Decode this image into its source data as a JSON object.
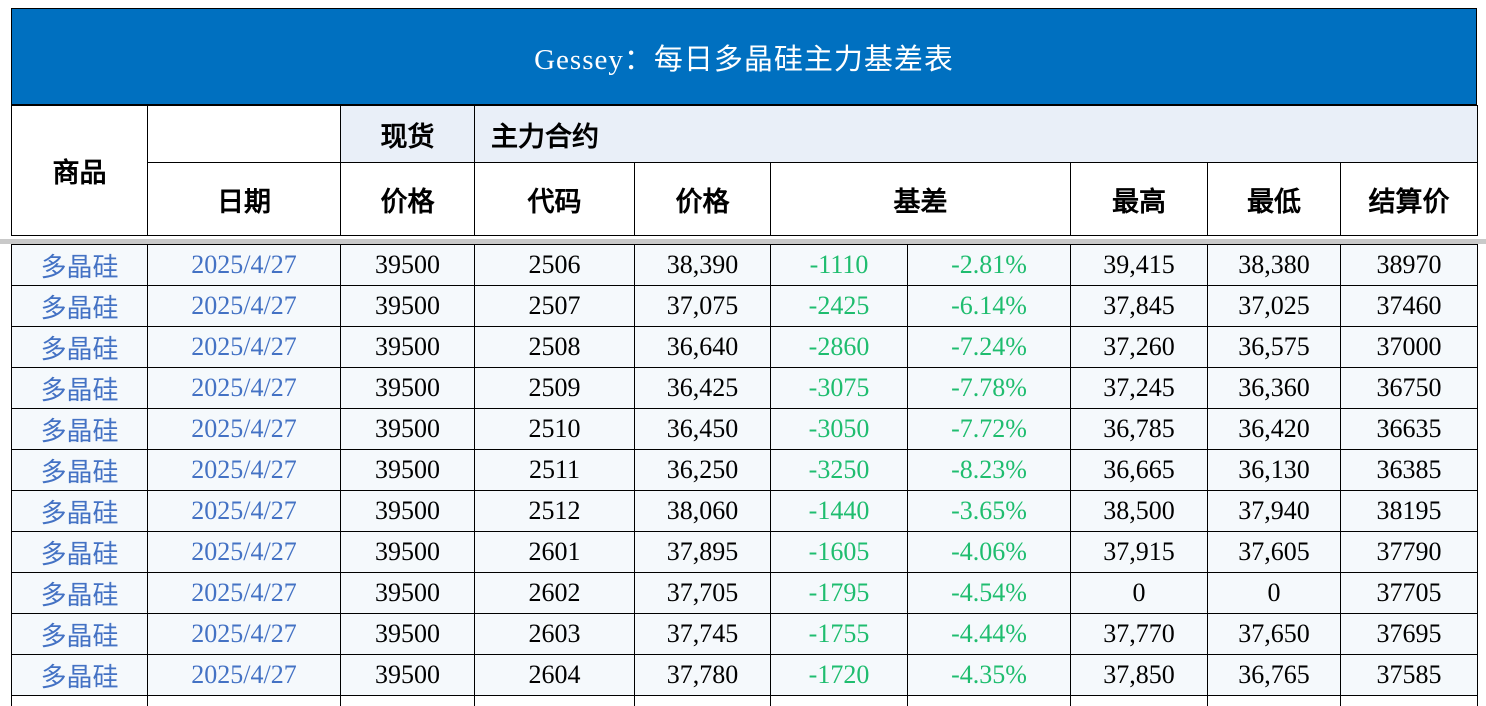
{
  "title": "Gessey：每日多晶硅主力基差表",
  "header": {
    "commodity": "商品",
    "date": "日期",
    "spot_group": "现货",
    "spot_price": "价格",
    "main_contract_group": "主力合约",
    "code": "代码",
    "price": "价格",
    "basis": "基差",
    "high": "最高",
    "low": "最低",
    "settlement": "结算价"
  },
  "colors": {
    "title_bg": "#0070C0",
    "title_text": "#FFFFFF",
    "header_band_bg": "#E9EFF8",
    "row_bg": "#F5F9FC",
    "commodity_date_blue": "#4472C4",
    "basis_green": "#1FBD6F",
    "border_black": "#000000",
    "separator_gray": "#C9C9C9"
  },
  "chart_data": {
    "type": "table",
    "title": "Gessey：每日多晶硅主力基差表",
    "columns": [
      "商品",
      "日期",
      "现货价格",
      "主力合约代码",
      "主力合约价格",
      "基差",
      "基差%",
      "最高",
      "最低",
      "结算价"
    ],
    "rows": [
      [
        "多晶硅",
        "2025/4/27",
        "39500",
        "2506",
        "38,390",
        "-1110",
        "-2.81%",
        "39,415",
        "38,380",
        "38970"
      ],
      [
        "多晶硅",
        "2025/4/27",
        "39500",
        "2507",
        "37,075",
        "-2425",
        "-6.14%",
        "37,845",
        "37,025",
        "37460"
      ],
      [
        "多晶硅",
        "2025/4/27",
        "39500",
        "2508",
        "36,640",
        "-2860",
        "-7.24%",
        "37,260",
        "36,575",
        "37000"
      ],
      [
        "多晶硅",
        "2025/4/27",
        "39500",
        "2509",
        "36,425",
        "-3075",
        "-7.78%",
        "37,245",
        "36,360",
        "36750"
      ],
      [
        "多晶硅",
        "2025/4/27",
        "39500",
        "2510",
        "36,450",
        "-3050",
        "-7.72%",
        "36,785",
        "36,420",
        "36635"
      ],
      [
        "多晶硅",
        "2025/4/27",
        "39500",
        "2511",
        "36,250",
        "-3250",
        "-8.23%",
        "36,665",
        "36,130",
        "36385"
      ],
      [
        "多晶硅",
        "2025/4/27",
        "39500",
        "2512",
        "38,060",
        "-1440",
        "-3.65%",
        "38,500",
        "37,940",
        "38195"
      ],
      [
        "多晶硅",
        "2025/4/27",
        "39500",
        "2601",
        "37,895",
        "-1605",
        "-4.06%",
        "37,915",
        "37,605",
        "37790"
      ],
      [
        "多晶硅",
        "2025/4/27",
        "39500",
        "2602",
        "37,705",
        "-1795",
        "-4.54%",
        "0",
        "0",
        "37705"
      ],
      [
        "多晶硅",
        "2025/4/27",
        "39500",
        "2603",
        "37,745",
        "-1755",
        "-4.44%",
        "37,770",
        "37,650",
        "37695"
      ],
      [
        "多晶硅",
        "2025/4/27",
        "39500",
        "2604",
        "37,780",
        "-1720",
        "-4.35%",
        "37,850",
        "36,765",
        "37585"
      ]
    ]
  }
}
